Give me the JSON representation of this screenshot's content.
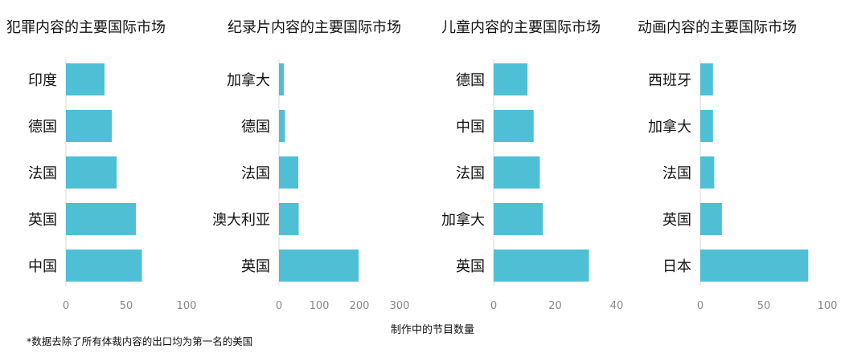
{
  "chart_data": [
    {
      "type": "bar",
      "orientation": "horizontal",
      "title": "犯罪内容的主要国际市场",
      "categories": [
        "印度",
        "德国",
        "法国",
        "英国",
        "中国"
      ],
      "values": [
        32,
        38,
        42,
        58,
        63
      ],
      "xlim": [
        0,
        100
      ],
      "xticks": [
        "0",
        "50",
        "100"
      ],
      "color": "#4FBFD6",
      "grid": false
    },
    {
      "type": "bar",
      "orientation": "horizontal",
      "title": "纪录片内容的主要国际市场",
      "categories": [
        "加拿大",
        "德国",
        "法国",
        "澳大利亚",
        "英国"
      ],
      "values": [
        12,
        15,
        48,
        49,
        198
      ],
      "xlim": [
        0,
        300
      ],
      "xticks": [
        "0",
        "100",
        "200",
        "300"
      ],
      "color": "#4FBFD6",
      "grid": false
    },
    {
      "type": "bar",
      "orientation": "horizontal",
      "title": "儿童内容的主要国际市场",
      "categories": [
        "德国",
        "中国",
        "法国",
        "加拿大",
        "英国"
      ],
      "values": [
        11,
        13,
        15,
        16,
        31
      ],
      "xlim": [
        0,
        40
      ],
      "xticks": [
        "0",
        "20",
        "40"
      ],
      "color": "#4FBFD6",
      "grid": false
    },
    {
      "type": "bar",
      "orientation": "horizontal",
      "title": "动画内容的主要国际市场",
      "categories": [
        "西班牙",
        "加拿大",
        "法国",
        "英国",
        "日本"
      ],
      "values": [
        10,
        10,
        11,
        17,
        85
      ],
      "xlim": [
        0,
        100
      ],
      "xticks": [
        "0",
        "50",
        "100"
      ],
      "color": "#4FBFD6",
      "grid": false
    }
  ],
  "shared_xlabel": "制作中的节目数量",
  "footnote": "*数据去除了所有体裁内容的出口均为第一名的美国"
}
